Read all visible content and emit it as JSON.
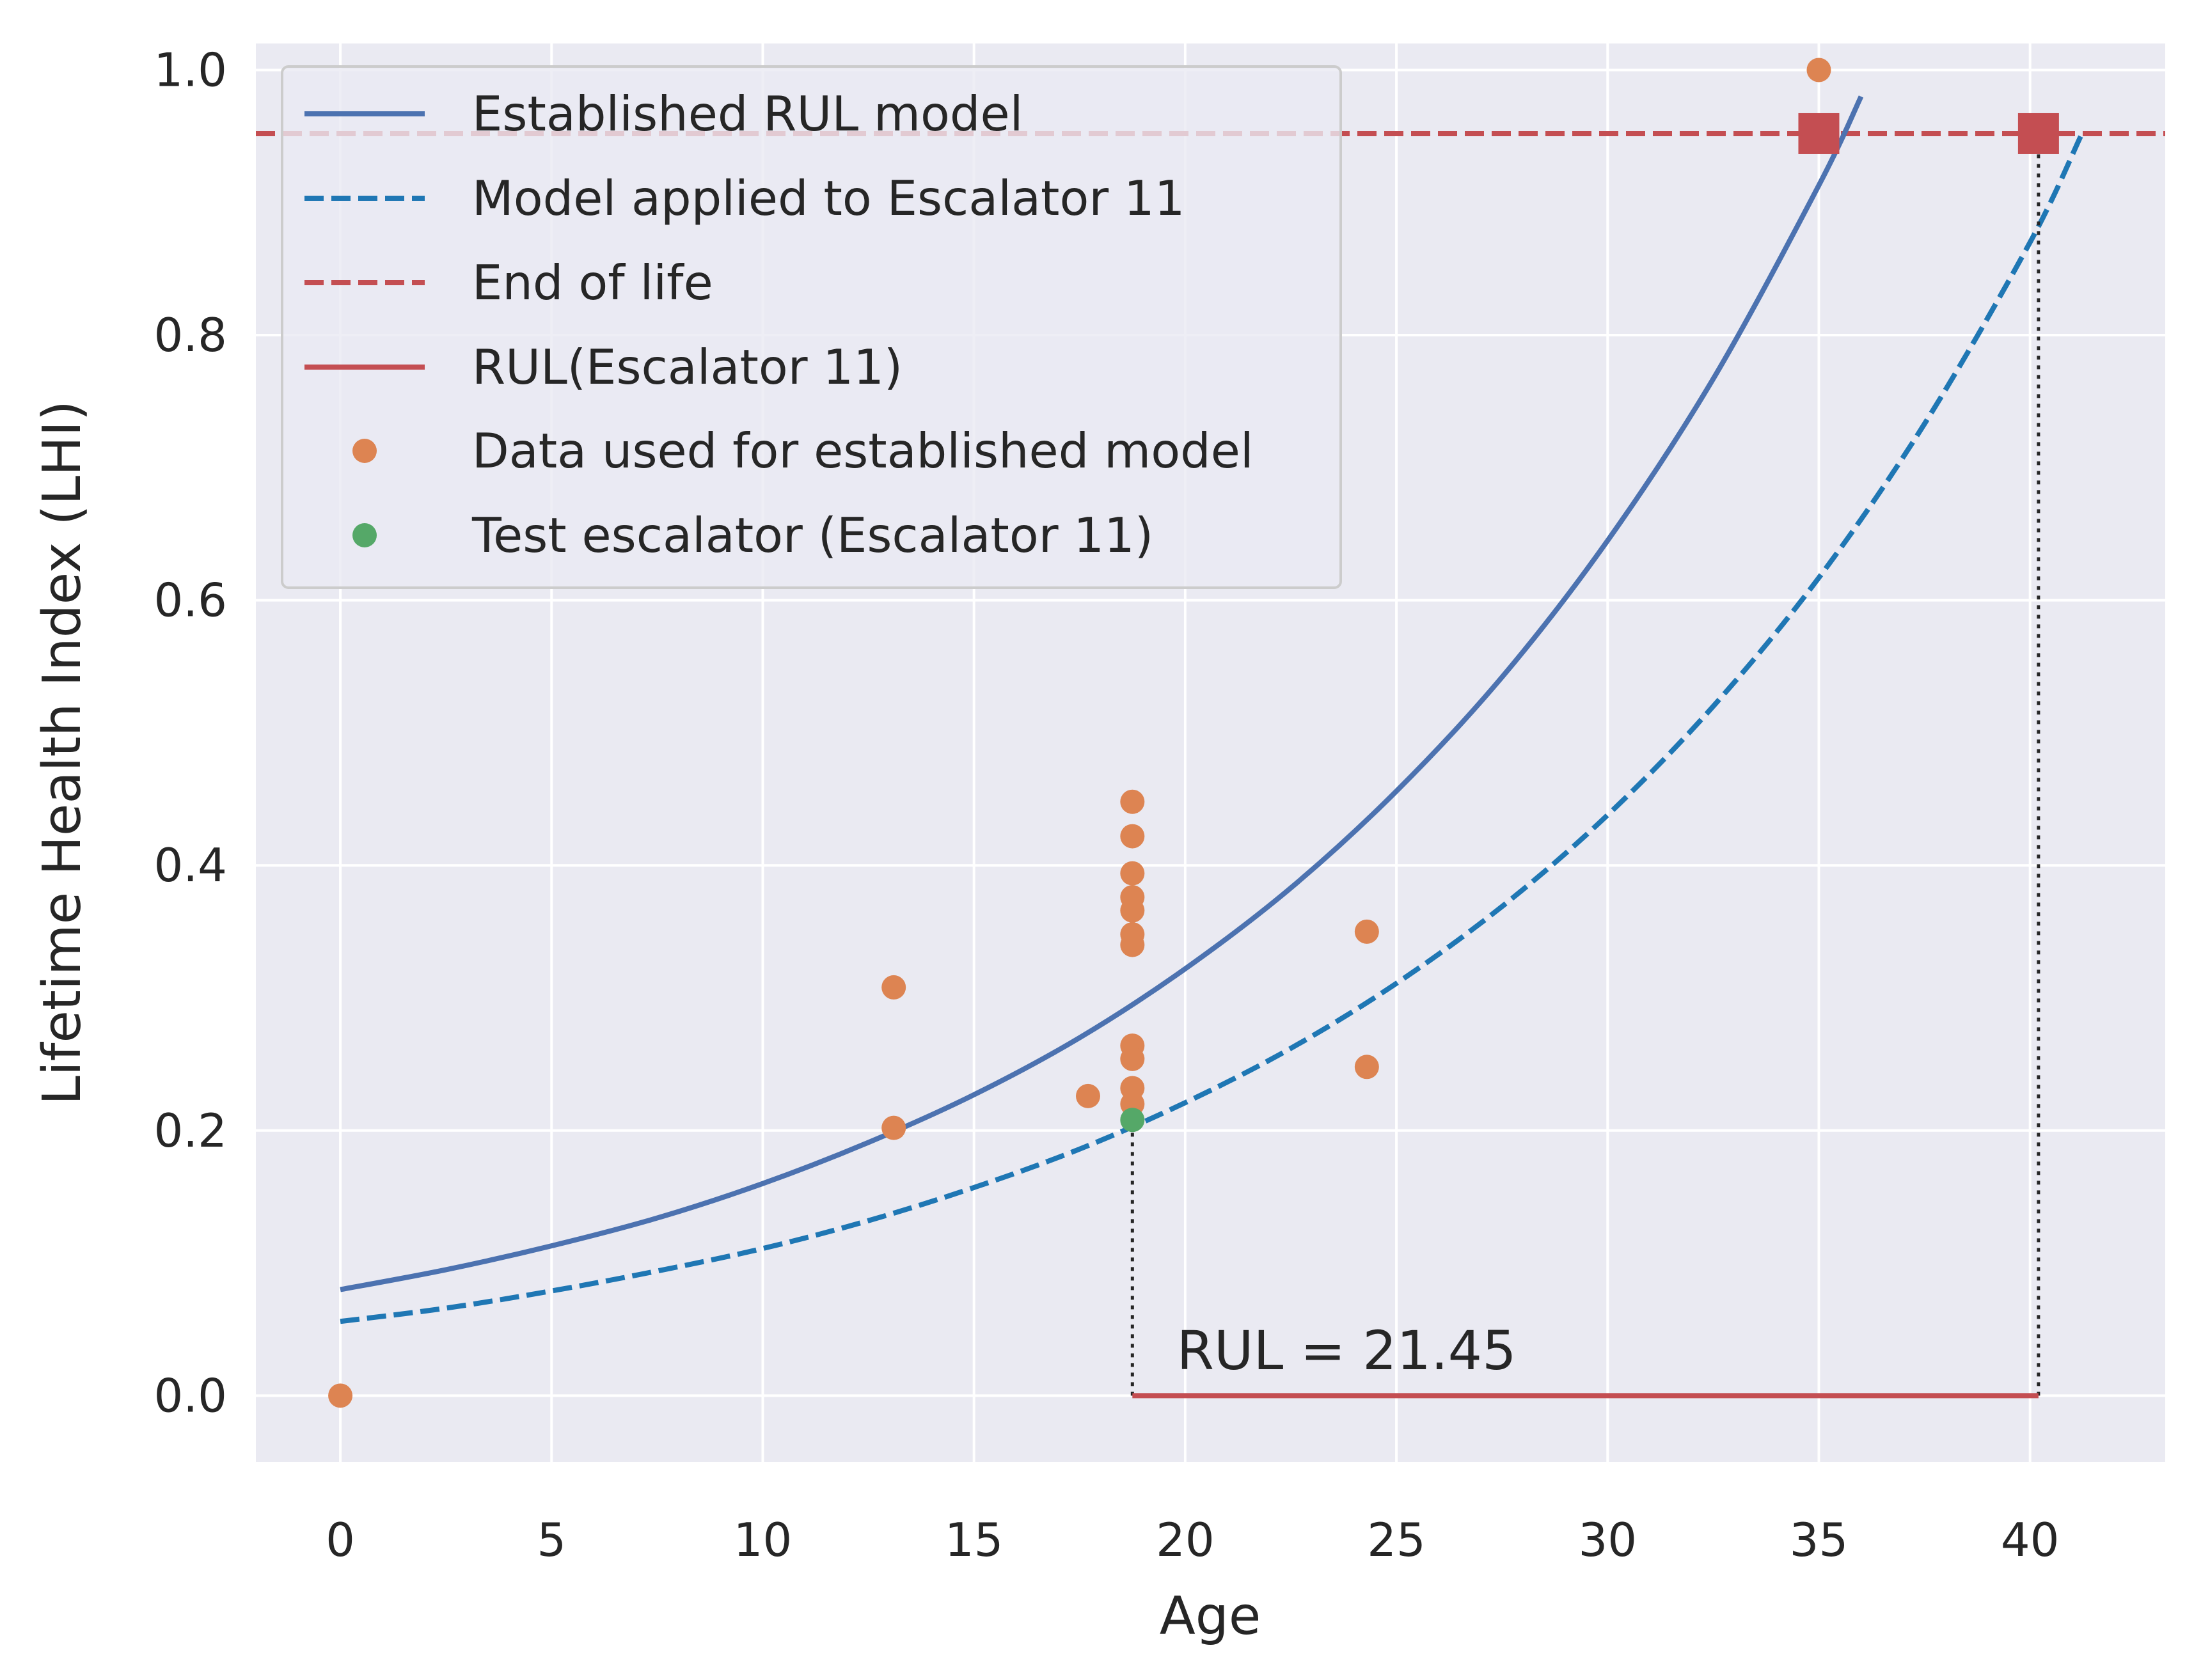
{
  "chart_data": {
    "type": "line",
    "xlabel": "Age",
    "ylabel": "Lifetime Health Index (LHI)",
    "xlim": [
      -2,
      43.2
    ],
    "ylim": [
      -0.05,
      1.02
    ],
    "x_ticks": [
      0,
      5,
      10,
      15,
      20,
      25,
      30,
      35,
      40
    ],
    "y_ticks": [
      0.0,
      0.2,
      0.4,
      0.6,
      0.8,
      1.0
    ],
    "y_tick_labels": [
      "0.0",
      "0.2",
      "0.4",
      "0.6",
      "0.8",
      "1.0"
    ],
    "grid": true,
    "legend_position": "top-left",
    "colors": {
      "background": "#eaeaf2",
      "grid": "#ffffff",
      "established": "#4c72b0",
      "applied": "#1f77b4",
      "end_of_life": "#c44e52",
      "rul": "#c44e52",
      "data_points": "#dd8452",
      "test_point": "#55a868",
      "guides": "#262626"
    },
    "series": [
      {
        "name": "Established RUL model",
        "style": "solid",
        "x": [
          0,
          2.5,
          5,
          7.5,
          10,
          12.5,
          15,
          17.5,
          20,
          22.5,
          25,
          27.5,
          30,
          32.5,
          35,
          36
        ],
        "y": [
          0.08,
          0.095,
          0.113,
          0.134,
          0.16,
          0.191,
          0.227,
          0.27,
          0.322,
          0.383,
          0.456,
          0.542,
          0.645,
          0.767,
          0.913,
          0.98
        ]
      },
      {
        "name": "Model applied to Escalator 11",
        "style": "dashed",
        "x": [
          0,
          2.5,
          5,
          7.5,
          10,
          12.5,
          15,
          17.5,
          20,
          22.5,
          25,
          27.5,
          30,
          32.5,
          35,
          37.5,
          40,
          41.2
        ],
        "y": [
          0.056,
          0.066,
          0.079,
          0.094,
          0.111,
          0.132,
          0.157,
          0.186,
          0.221,
          0.262,
          0.311,
          0.369,
          0.438,
          0.52,
          0.617,
          0.733,
          0.87,
          0.95
        ]
      },
      {
        "name": "End of life",
        "style": "dashed",
        "y_value": 0.952
      },
      {
        "name": "RUL(Escalator 11)",
        "style": "solid",
        "x": [
          18.75,
          40.2
        ],
        "y": [
          0.0,
          0.0
        ]
      },
      {
        "name": "Data used for established model",
        "style": "markers",
        "points": [
          [
            0,
            0.0
          ],
          [
            13.1,
            0.308
          ],
          [
            13.1,
            0.202
          ],
          [
            17.7,
            0.226
          ],
          [
            18.75,
            0.448
          ],
          [
            18.75,
            0.422
          ],
          [
            18.75,
            0.394
          ],
          [
            18.75,
            0.376
          ],
          [
            18.75,
            0.366
          ],
          [
            18.75,
            0.348
          ],
          [
            18.75,
            0.34
          ],
          [
            18.75,
            0.264
          ],
          [
            18.75,
            0.254
          ],
          [
            18.75,
            0.232
          ],
          [
            18.75,
            0.22
          ],
          [
            24.3,
            0.35
          ],
          [
            24.3,
            0.248
          ],
          [
            35.0,
            1.0
          ]
        ]
      },
      {
        "name": "Test escalator (Escalator 11)",
        "style": "markers",
        "points": [
          [
            18.75,
            0.208
          ]
        ]
      }
    ],
    "end_of_life_markers": [
      [
        35.0,
        0.952
      ],
      [
        40.2,
        0.952
      ]
    ],
    "guide_lines": [
      {
        "x": 18.75,
        "y_from": 0.0,
        "y_to": 0.208
      },
      {
        "x": 40.2,
        "y_from": 0.0,
        "y_to": 0.952
      }
    ],
    "annotation": {
      "text": "RUL = 21.45",
      "x": 19.8,
      "y": 0.02
    }
  }
}
